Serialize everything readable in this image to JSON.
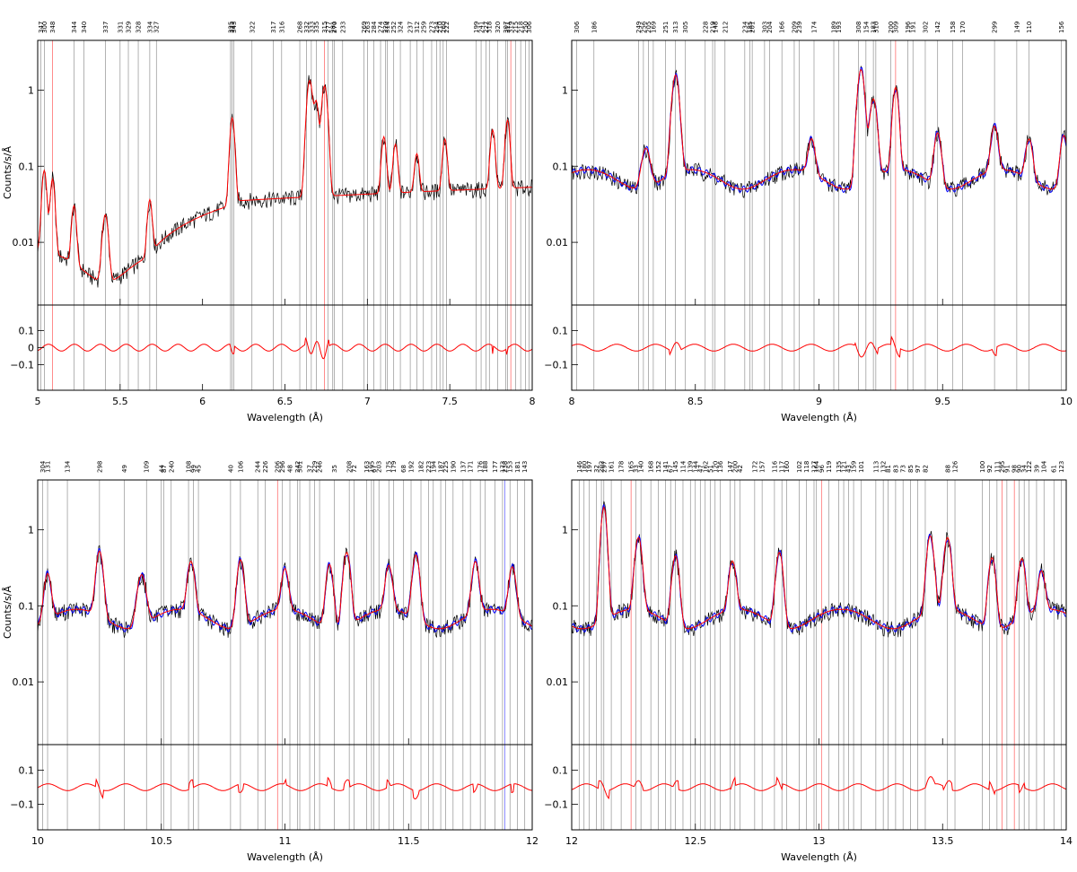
{
  "colors": {
    "data": "#000000",
    "model_red": "#ff0000",
    "model_blue": "#0000ff",
    "line_marker": "#808080"
  },
  "chart_data": [
    {
      "type": "line",
      "xlabel": "Wavelength (Å)",
      "ylabel": "Counts/s/Å",
      "xlim": [
        5,
        8
      ],
      "ylim": [
        0.0015,
        4.5
      ],
      "yscale": "log",
      "xticks": [
        "5",
        "5.5",
        "6",
        "6.5",
        "7",
        "7.5",
        "8"
      ],
      "yticks": [
        "0.01",
        "0.1",
        "1"
      ],
      "residual_ylim": [
        -0.25,
        0.25
      ],
      "residual_yticks": [
        "0.1",
        "0",
        "−0.1"
      ],
      "line_ids": [
        {
          "label": "347",
          "x": 5.02
        },
        {
          "label": "300",
          "x": 5.04
        },
        {
          "label": "348",
          "x": 5.09,
          "color": "red"
        },
        {
          "label": "344",
          "x": 5.22
        },
        {
          "label": "340",
          "x": 5.28
        },
        {
          "label": "337",
          "x": 5.41
        },
        {
          "label": "331",
          "x": 5.5
        },
        {
          "label": "329",
          "x": 5.55
        },
        {
          "label": "328",
          "x": 5.61
        },
        {
          "label": "334",
          "x": 5.68
        },
        {
          "label": "327",
          "x": 5.72
        },
        {
          "label": "325",
          "x": 6.17
        },
        {
          "label": "323",
          "x": 6.18
        },
        {
          "label": "343",
          "x": 6.19
        },
        {
          "label": "322",
          "x": 6.3
        },
        {
          "label": "317",
          "x": 6.43
        },
        {
          "label": "316",
          "x": 6.48
        },
        {
          "label": "268",
          "x": 6.59
        },
        {
          "label": "332",
          "x": 6.63
        },
        {
          "label": "333",
          "x": 6.66
        },
        {
          "label": "335",
          "x": 6.69
        },
        {
          "label": "315",
          "x": 6.74,
          "color": "red"
        },
        {
          "label": "277",
          "x": 6.76
        },
        {
          "label": "281",
          "x": 6.79
        },
        {
          "label": "270",
          "x": 6.8
        },
        {
          "label": "233",
          "x": 6.85
        },
        {
          "label": "269",
          "x": 6.98
        },
        {
          "label": "263",
          "x": 7.0
        },
        {
          "label": "284",
          "x": 7.04
        },
        {
          "label": "274",
          "x": 7.08
        },
        {
          "label": "220",
          "x": 7.11
        },
        {
          "label": "314",
          "x": 7.12
        },
        {
          "label": "252",
          "x": 7.16
        },
        {
          "label": "324",
          "x": 7.2
        },
        {
          "label": "237",
          "x": 7.26
        },
        {
          "label": "312",
          "x": 7.3
        },
        {
          "label": "259",
          "x": 7.34
        },
        {
          "label": "273",
          "x": 7.39
        },
        {
          "label": "254",
          "x": 7.42
        },
        {
          "label": "210",
          "x": 7.44
        },
        {
          "label": "260",
          "x": 7.46
        },
        {
          "label": "222",
          "x": 7.48
        },
        {
          "label": "199",
          "x": 7.66
        },
        {
          "label": "241",
          "x": 7.69
        },
        {
          "label": "227",
          "x": 7.72
        },
        {
          "label": "318",
          "x": 7.74
        },
        {
          "label": "320",
          "x": 7.79
        },
        {
          "label": "307",
          "x": 7.84
        },
        {
          "label": "311",
          "x": 7.85
        },
        {
          "label": "319",
          "x": 7.87,
          "color": "red"
        },
        {
          "label": "215",
          "x": 7.9
        },
        {
          "label": "218",
          "x": 7.93
        },
        {
          "label": "250",
          "x": 7.96
        },
        {
          "label": "306",
          "x": 7.98
        }
      ]
    },
    {
      "type": "line",
      "xlabel": "Wavelength (Å)",
      "ylabel": "",
      "xlim": [
        8,
        10
      ],
      "ylim": [
        0.0015,
        4.5
      ],
      "yscale": "log",
      "xticks": [
        "8",
        "8.5",
        "9",
        "9.5",
        "10"
      ],
      "yticks": [
        "0.01",
        "0.1",
        "1"
      ],
      "residual_ylim": [
        -0.25,
        0.25
      ],
      "residual_yticks": [
        "0.1",
        "−0.1"
      ],
      "line_ids": [
        {
          "label": "306",
          "x": 8.02
        },
        {
          "label": "186",
          "x": 8.09
        },
        {
          "label": "249",
          "x": 8.27
        },
        {
          "label": "256",
          "x": 8.29
        },
        {
          "label": "205",
          "x": 8.31
        },
        {
          "label": "169",
          "x": 8.33
        },
        {
          "label": "251",
          "x": 8.38
        },
        {
          "label": "313",
          "x": 8.42
        },
        {
          "label": "305",
          "x": 8.46
        },
        {
          "label": "228",
          "x": 8.54
        },
        {
          "label": "219",
          "x": 8.57
        },
        {
          "label": "148",
          "x": 8.58
        },
        {
          "label": "212",
          "x": 8.62
        },
        {
          "label": "234",
          "x": 8.7
        },
        {
          "label": "185",
          "x": 8.72
        },
        {
          "label": "201",
          "x": 8.73
        },
        {
          "label": "303",
          "x": 8.78
        },
        {
          "label": "204",
          "x": 8.8
        },
        {
          "label": "166",
          "x": 8.85
        },
        {
          "label": "209",
          "x": 8.9
        },
        {
          "label": "239",
          "x": 8.92
        },
        {
          "label": "174",
          "x": 8.98
        },
        {
          "label": "189",
          "x": 9.06
        },
        {
          "label": "193",
          "x": 9.08
        },
        {
          "label": "308",
          "x": 9.16
        },
        {
          "label": "154",
          "x": 9.19
        },
        {
          "label": "310",
          "x": 9.23
        },
        {
          "label": "183",
          "x": 9.22
        },
        {
          "label": "200",
          "x": 9.29
        },
        {
          "label": "309",
          "x": 9.31,
          "color": "red"
        },
        {
          "label": "196",
          "x": 9.36
        },
        {
          "label": "191",
          "x": 9.38
        },
        {
          "label": "302",
          "x": 9.43
        },
        {
          "label": "142",
          "x": 9.48
        },
        {
          "label": "158",
          "x": 9.54
        },
        {
          "label": "170",
          "x": 9.58
        },
        {
          "label": "299",
          "x": 9.71
        },
        {
          "label": "149",
          "x": 9.8
        },
        {
          "label": "110",
          "x": 9.85
        },
        {
          "label": "156",
          "x": 9.98
        }
      ]
    },
    {
      "type": "line",
      "xlabel": "Wavelength (Å)",
      "ylabel": "Counts/s/Å",
      "xlim": [
        10,
        12
      ],
      "ylim": [
        0.0015,
        4.5
      ],
      "yscale": "log",
      "xticks": [
        "10",
        "10.5",
        "11",
        "11.5",
        "12"
      ],
      "yticks": [
        "0.01",
        "0.1",
        "1"
      ],
      "residual_ylim": [
        -0.25,
        0.25
      ],
      "residual_yticks": [
        "0.1",
        "−0.1"
      ],
      "line_ids": [
        {
          "label": "304",
          "x": 10.02
        },
        {
          "label": "131",
          "x": 10.04
        },
        {
          "label": "134",
          "x": 10.12
        },
        {
          "label": "298",
          "x": 10.25
        },
        {
          "label": "49",
          "x": 10.35
        },
        {
          "label": "109",
          "x": 10.44
        },
        {
          "label": "44",
          "x": 10.5
        },
        {
          "label": "87",
          "x": 10.51
        },
        {
          "label": "240",
          "x": 10.54
        },
        {
          "label": "108",
          "x": 10.61
        },
        {
          "label": "99",
          "x": 10.63
        },
        {
          "label": "45",
          "x": 10.65
        },
        {
          "label": "40",
          "x": 10.78
        },
        {
          "label": "106",
          "x": 10.82
        },
        {
          "label": "244",
          "x": 10.89
        },
        {
          "label": "226",
          "x": 10.92
        },
        {
          "label": "206",
          "x": 10.97,
          "color": "red"
        },
        {
          "label": "296",
          "x": 10.99
        },
        {
          "label": "48",
          "x": 11.02
        },
        {
          "label": "301",
          "x": 11.06
        },
        {
          "label": "242",
          "x": 11.05
        },
        {
          "label": "37",
          "x": 11.1
        },
        {
          "label": "229",
          "x": 11.12
        },
        {
          "label": "246",
          "x": 11.14
        },
        {
          "label": "35",
          "x": 11.2
        },
        {
          "label": "208",
          "x": 11.26
        },
        {
          "label": "72",
          "x": 11.28
        },
        {
          "label": "163",
          "x": 11.33
        },
        {
          "label": "195",
          "x": 11.35
        },
        {
          "label": "67",
          "x": 11.36
        },
        {
          "label": "203",
          "x": 11.38
        },
        {
          "label": "175",
          "x": 11.42
        },
        {
          "label": "179",
          "x": 11.44
        },
        {
          "label": "68",
          "x": 11.48
        },
        {
          "label": "192",
          "x": 11.51
        },
        {
          "label": "182",
          "x": 11.55
        },
        {
          "label": "223",
          "x": 11.58
        },
        {
          "label": "194",
          "x": 11.6
        },
        {
          "label": "187",
          "x": 11.63
        },
        {
          "label": "225",
          "x": 11.65
        },
        {
          "label": "190",
          "x": 11.68
        },
        {
          "label": "137",
          "x": 11.72
        },
        {
          "label": "171",
          "x": 11.75
        },
        {
          "label": "176",
          "x": 11.79
        },
        {
          "label": "188",
          "x": 11.81
        },
        {
          "label": "177",
          "x": 11.85
        },
        {
          "label": "173",
          "x": 11.88
        },
        {
          "label": "238",
          "x": 11.89,
          "color": "blue"
        },
        {
          "label": "153",
          "x": 11.91
        },
        {
          "label": "181",
          "x": 11.94
        },
        {
          "label": "143",
          "x": 11.97
        }
      ]
    },
    {
      "type": "line",
      "xlabel": "Wavelength (Å)",
      "ylabel": "",
      "xlim": [
        12,
        14
      ],
      "ylim": [
        0.0015,
        4.5
      ],
      "yscale": "log",
      "xticks": [
        "12",
        "12.5",
        "13",
        "13.5",
        "14"
      ],
      "yticks": [
        "0.01",
        "0.1",
        "1"
      ],
      "residual_ylim": [
        -0.25,
        0.25
      ],
      "residual_yticks": [
        "0.1",
        "−0.1"
      ],
      "line_ids": [
        {
          "label": "146",
          "x": 12.03
        },
        {
          "label": "180",
          "x": 12.05
        },
        {
          "label": "197",
          "x": 12.07
        },
        {
          "label": "32",
          "x": 12.1
        },
        {
          "label": "297",
          "x": 12.13
        },
        {
          "label": "202",
          "x": 12.12
        },
        {
          "label": "161",
          "x": 12.16
        },
        {
          "label": "178",
          "x": 12.2
        },
        {
          "label": "165",
          "x": 12.24,
          "color": "red"
        },
        {
          "label": "33",
          "x": 12.26
        },
        {
          "label": "140",
          "x": 12.28
        },
        {
          "label": "168",
          "x": 12.32
        },
        {
          "label": "152",
          "x": 12.35
        },
        {
          "label": "141",
          "x": 12.38
        },
        {
          "label": "67",
          "x": 12.4
        },
        {
          "label": "145",
          "x": 12.42
        },
        {
          "label": "114",
          "x": 12.45
        },
        {
          "label": "139",
          "x": 12.48
        },
        {
          "label": "144",
          "x": 12.5
        },
        {
          "label": "47",
          "x": 12.52
        },
        {
          "label": "162",
          "x": 12.54
        },
        {
          "label": "51",
          "x": 12.56
        },
        {
          "label": "120",
          "x": 12.58
        },
        {
          "label": "136",
          "x": 12.6
        },
        {
          "label": "147",
          "x": 12.64
        },
        {
          "label": "200",
          "x": 12.66
        },
        {
          "label": "42",
          "x": 12.68
        },
        {
          "label": "172",
          "x": 12.74
        },
        {
          "label": "157",
          "x": 12.77
        },
        {
          "label": "116",
          "x": 12.82
        },
        {
          "label": "117",
          "x": 12.85
        },
        {
          "label": "160",
          "x": 12.87
        },
        {
          "label": "102",
          "x": 12.92
        },
        {
          "label": "118",
          "x": 12.95
        },
        {
          "label": "127",
          "x": 12.98
        },
        {
          "label": "96",
          "x": 13.01,
          "color": "red"
        },
        {
          "label": "164",
          "x": 12.99
        },
        {
          "label": "119",
          "x": 13.04
        },
        {
          "label": "135",
          "x": 13.08
        },
        {
          "label": "121",
          "x": 13.1
        },
        {
          "label": "43",
          "x": 13.12
        },
        {
          "label": "159",
          "x": 13.14
        },
        {
          "label": "101",
          "x": 13.17
        },
        {
          "label": "113",
          "x": 13.23
        },
        {
          "label": "132",
          "x": 13.26
        },
        {
          "label": "81",
          "x": 13.28
        },
        {
          "label": "83",
          "x": 13.31
        },
        {
          "label": "73",
          "x": 13.34
        },
        {
          "label": "85",
          "x": 13.37
        },
        {
          "label": "97",
          "x": 13.4
        },
        {
          "label": "82",
          "x": 13.43
        },
        {
          "label": "88",
          "x": 13.52
        },
        {
          "label": "126",
          "x": 13.55
        },
        {
          "label": "100",
          "x": 13.66
        },
        {
          "label": "92",
          "x": 13.69
        },
        {
          "label": "111",
          "x": 13.72
        },
        {
          "label": "295",
          "x": 13.74,
          "color": "red"
        },
        {
          "label": "91",
          "x": 13.76
        },
        {
          "label": "98",
          "x": 13.79,
          "color": "red"
        },
        {
          "label": "90",
          "x": 13.81
        },
        {
          "label": "34",
          "x": 13.83
        },
        {
          "label": "122",
          "x": 13.85
        },
        {
          "label": "39",
          "x": 13.88
        },
        {
          "label": "104",
          "x": 13.91
        },
        {
          "label": "61",
          "x": 13.95
        },
        {
          "label": "123",
          "x": 13.98
        }
      ]
    }
  ]
}
